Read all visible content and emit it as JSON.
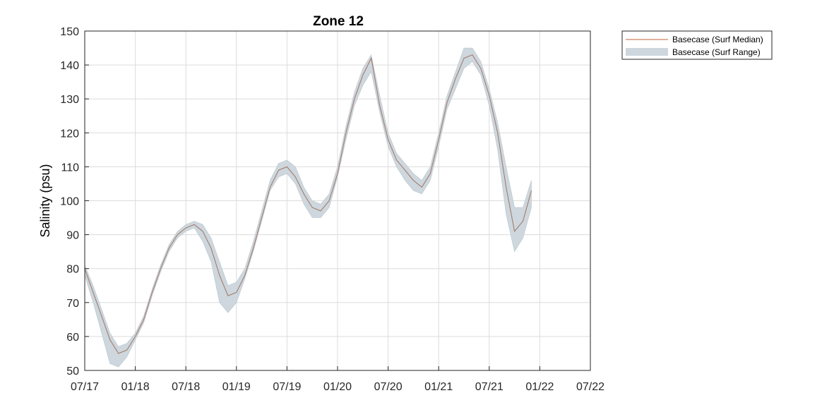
{
  "colors": {
    "median_line": "#c0603a",
    "range_fill": "#cdd7dd",
    "axis": "#262626",
    "grid": "#dcdcdc"
  },
  "chart_data": {
    "type": "area",
    "title": "Zone 12",
    "xlabel": "",
    "ylabel": "Salinity (psu)",
    "x_ticks": [
      "07/17",
      "01/18",
      "07/18",
      "01/19",
      "07/19",
      "01/20",
      "07/20",
      "01/21",
      "07/21",
      "01/22",
      "07/22"
    ],
    "x_range": [
      "2017-07",
      "2022-07"
    ],
    "ylim": [
      50,
      150
    ],
    "y_ticks": [
      50,
      60,
      70,
      80,
      90,
      100,
      110,
      120,
      130,
      140,
      150
    ],
    "grid": true,
    "legend_position": "outside-top-right",
    "x": [
      "2017-07",
      "2017-08",
      "2017-09",
      "2017-10",
      "2017-11",
      "2017-12",
      "2018-01",
      "2018-02",
      "2018-03",
      "2018-04",
      "2018-05",
      "2018-06",
      "2018-07",
      "2018-08",
      "2018-09",
      "2018-10",
      "2018-11",
      "2018-12",
      "2019-01",
      "2019-02",
      "2019-03",
      "2019-04",
      "2019-05",
      "2019-06",
      "2019-07",
      "2019-08",
      "2019-09",
      "2019-10",
      "2019-11",
      "2019-12",
      "2020-01",
      "2020-02",
      "2020-03",
      "2020-04",
      "2020-05",
      "2020-06",
      "2020-07",
      "2020-08",
      "2020-09",
      "2020-10",
      "2020-11",
      "2020-12",
      "2021-01",
      "2021-02",
      "2021-03",
      "2021-04",
      "2021-05",
      "2021-06",
      "2021-07",
      "2021-08",
      "2021-09",
      "2021-10",
      "2021-11",
      "2021-12"
    ],
    "series": [
      {
        "name": "Basecase (Surf Median)",
        "values": [
          80,
          73,
          66,
          59,
          55,
          56,
          60,
          65,
          73,
          80,
          86,
          90,
          92,
          93,
          91,
          86,
          78,
          72,
          73,
          78,
          86,
          95,
          104,
          109,
          110,
          107,
          102,
          98,
          97,
          100,
          108,
          120,
          130,
          137,
          142,
          128,
          118,
          112,
          109,
          106,
          104,
          108,
          118,
          129,
          136,
          142,
          143,
          139,
          131,
          120,
          104,
          91,
          94,
          103
        ]
      },
      {
        "name": "Basecase (Surf Range)",
        "lower": [
          78,
          70,
          61,
          52,
          51,
          54,
          59,
          64,
          72,
          79,
          85,
          89,
          91,
          92,
          88,
          82,
          70,
          67,
          70,
          77,
          85,
          94,
          103,
          107,
          108,
          105,
          99,
          95,
          95,
          98,
          107,
          118,
          128,
          134,
          138,
          126,
          116,
          110,
          106,
          103,
          102,
          106,
          116,
          127,
          133,
          139,
          141,
          137,
          128,
          115,
          96,
          85,
          89,
          98
        ],
        "upper": [
          81,
          75,
          68,
          61,
          57,
          58,
          61,
          66,
          74,
          81,
          87,
          91,
          93,
          94,
          93,
          89,
          82,
          75,
          76,
          80,
          88,
          97,
          106,
          111,
          112,
          110,
          104,
          100,
          99,
          102,
          110,
          122,
          132,
          139,
          143,
          131,
          120,
          114,
          111,
          108,
          106,
          110,
          120,
          131,
          138,
          145,
          145,
          141,
          133,
          123,
          110,
          98,
          98,
          106
        ]
      }
    ]
  }
}
